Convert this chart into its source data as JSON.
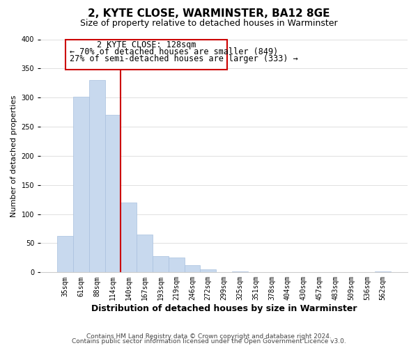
{
  "title": "2, KYTE CLOSE, WARMINSTER, BA12 8GE",
  "subtitle": "Size of property relative to detached houses in Warminster",
  "xlabel": "Distribution of detached houses by size in Warminster",
  "ylabel": "Number of detached properties",
  "bar_labels": [
    "35sqm",
    "61sqm",
    "88sqm",
    "114sqm",
    "140sqm",
    "167sqm",
    "193sqm",
    "219sqm",
    "246sqm",
    "272sqm",
    "299sqm",
    "325sqm",
    "351sqm",
    "378sqm",
    "404sqm",
    "430sqm",
    "457sqm",
    "483sqm",
    "509sqm",
    "536sqm",
    "562sqm"
  ],
  "bar_values": [
    63,
    302,
    330,
    270,
    120,
    65,
    28,
    25,
    12,
    5,
    0,
    2,
    0,
    0,
    0,
    0,
    0,
    0,
    0,
    0,
    2
  ],
  "bar_color": "#c8d9ee",
  "bar_edge_color": "#a8c0de",
  "vline_x": 3.5,
  "vline_color": "#cc0000",
  "annotation_title": "2 KYTE CLOSE: 128sqm",
  "annotation_line1": "← 70% of detached houses are smaller (849)",
  "annotation_line2": "27% of semi-detached houses are larger (333) →",
  "annotation_box_color": "#ffffff",
  "annotation_box_edge": "#cc0000",
  "ylim": [
    0,
    400
  ],
  "yticks": [
    0,
    50,
    100,
    150,
    200,
    250,
    300,
    350,
    400
  ],
  "footer_line1": "Contains HM Land Registry data © Crown copyright and database right 2024.",
  "footer_line2": "Contains public sector information licensed under the Open Government Licence v3.0.",
  "background_color": "#ffffff",
  "grid_color": "#e0e0e0",
  "title_fontsize": 11,
  "subtitle_fontsize": 9,
  "xlabel_fontsize": 9,
  "ylabel_fontsize": 8,
  "tick_fontsize": 7,
  "annotation_fontsize": 8.5,
  "footer_fontsize": 6.5
}
